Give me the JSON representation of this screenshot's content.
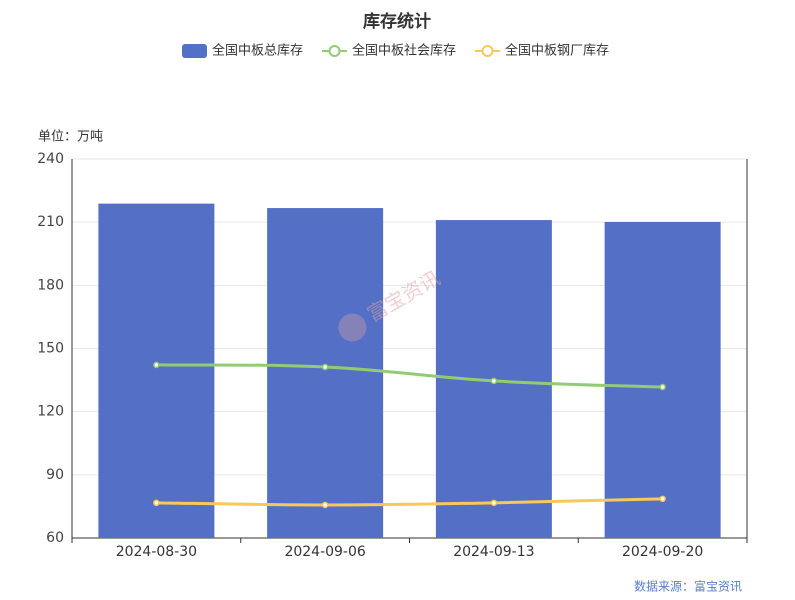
{
  "chart_data": {
    "type": "bar-line",
    "title": "库存统计",
    "y_unit_label": "单位：万吨",
    "source": "数据来源：富宝资讯",
    "watermark": "富宝资讯",
    "categories": [
      "2024-08-30",
      "2024-09-06",
      "2024-09-13",
      "2024-09-20"
    ],
    "series": [
      {
        "name": "全国中板总库存",
        "type": "bar",
        "color": "#5470c6",
        "values": [
          218.8,
          216.7,
          211.0,
          210.1
        ]
      },
      {
        "name": "全国中板社会库存",
        "type": "line",
        "color": "#91cc75",
        "values": [
          142.2,
          141.2,
          134.6,
          131.7
        ]
      },
      {
        "name": "全国中板钢厂库存",
        "type": "line",
        "color": "#fac858",
        "values": [
          76.7,
          75.7,
          76.7,
          78.6
        ]
      }
    ],
    "ylim": [
      60,
      240
    ],
    "yticks": [
      60,
      90,
      120,
      150,
      180,
      210,
      240
    ],
    "grid": true
  }
}
